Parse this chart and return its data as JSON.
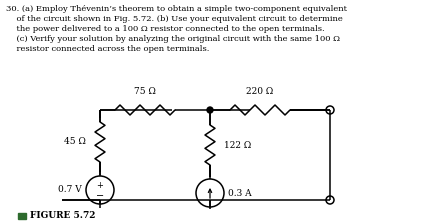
{
  "title_text": "30. (a) Employ Thévenin’s theorem to obtain a simple two-component equivalent\n    of the circuit shown in Fig. 5.72. (b) Use your equivalent circuit to determine\n    the power delivered to a 100 Ω resistor connected to the open terminals.\n    (c) Verify your solution by analyzing the original circuit with the same 100 Ω\n    resistor connected across the open terminals.",
  "fig_label": "FIGURE 5.72",
  "r1_label": "45 Ω",
  "r2_label": "75 Ω",
  "r3_label": "220 Ω",
  "r4_label": "122 Ω",
  "cs_label": "0.3 A",
  "vs_label": "0.7 V",
  "bg_color": "#ffffff",
  "text_color": "#000000",
  "line_color": "#000000",
  "fig_label_color": "#2e6b2e"
}
